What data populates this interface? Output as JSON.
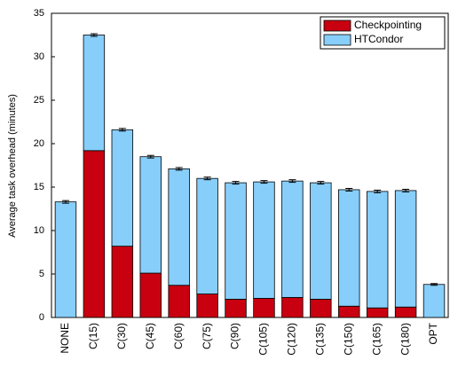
{
  "chart_data": {
    "type": "stacked-bar",
    "y_label": "Average task overhead (minutes)",
    "categories": [
      "NONE",
      "C(15)",
      "C(30)",
      "C(45)",
      "C(60)",
      "C(75)",
      "C(90)",
      "C(105)",
      "C(120)",
      "C(135)",
      "C(150)",
      "C(165)",
      "C(180)",
      "OPT"
    ],
    "series": [
      {
        "name": "Checkpointing",
        "color": "#c8000f",
        "values": [
          0,
          19.2,
          8.2,
          5.1,
          3.7,
          2.7,
          2.1,
          2.2,
          2.3,
          2.1,
          1.3,
          1.1,
          1.2,
          0
        ]
      },
      {
        "name": "HTCondor",
        "color": "#87cefa",
        "values": [
          13.3,
          13.3,
          13.4,
          13.4,
          13.4,
          13.3,
          13.4,
          13.4,
          13.4,
          13.4,
          13.4,
          13.4,
          13.4,
          3.8
        ]
      }
    ],
    "errors": [
      0.15,
      0.15,
      0.15,
      0.15,
      0.15,
      0.15,
      0.15,
      0.15,
      0.15,
      0.15,
      0.15,
      0.15,
      0.15,
      0.1
    ],
    "ylim": [
      0,
      35
    ],
    "yticks": [
      0,
      5,
      10,
      15,
      20,
      25,
      30,
      35
    ],
    "legend": "upper-right"
  }
}
